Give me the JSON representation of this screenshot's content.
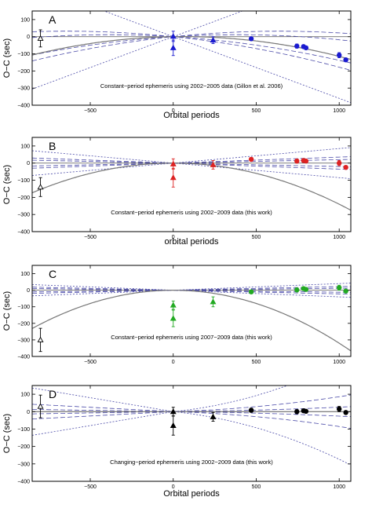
{
  "figure": {
    "colors": {
      "blue": "#1a1ad0",
      "red": "#dd2222",
      "green": "#22aa22",
      "black": "#000000",
      "envelope": "#4a4aa8",
      "fit": "#777777"
    }
  },
  "chart_data": [
    {
      "type": "scatter",
      "panel_label": "A",
      "caption": "Constant−period ephemeris using 2002−2005 data (Gillon et al. 2006)",
      "xlabel": "Orbital periods",
      "ylabel": "O−C (sec)",
      "xlim": [
        -850,
        1070
      ],
      "ylim": [
        -400,
        150
      ],
      "xticks": [
        -500,
        0,
        500,
        1000
      ],
      "xtick_labels": [
        "−500",
        "0",
        "500",
        "1000"
      ],
      "yticks": [
        100,
        0,
        -100,
        -200,
        -300,
        -400
      ],
      "ytick_labels": [
        "100",
        "0",
        "−100",
        "−200",
        "−300",
        "−400"
      ],
      "color_key": "blue",
      "fit_quadratic": -0.00013,
      "envelope_inner": [
        0.06,
        0.1
      ],
      "envelope_outer": 0.36,
      "points": [
        {
          "x": -800,
          "y": -10,
          "err": 50,
          "marker": "triangle-open",
          "color": "black"
        },
        {
          "x": 0,
          "y": 2,
          "err": 30,
          "marker": "triangle",
          "color": "blue"
        },
        {
          "x": 0,
          "y": -65,
          "err": 45,
          "marker": "triangle",
          "color": "blue"
        },
        {
          "x": 240,
          "y": -20,
          "err": 20,
          "marker": "triangle",
          "color": "blue"
        },
        {
          "x": 470,
          "y": -12,
          "err": 10,
          "marker": "circle",
          "color": "blue"
        },
        {
          "x": 745,
          "y": -55,
          "err": 12,
          "marker": "circle",
          "color": "blue"
        },
        {
          "x": 785,
          "y": -58,
          "err": 10,
          "marker": "circle",
          "color": "blue"
        },
        {
          "x": 800,
          "y": -65,
          "err": 8,
          "marker": "circle",
          "color": "blue"
        },
        {
          "x": 1000,
          "y": -108,
          "err": 15,
          "marker": "circle",
          "color": "blue"
        },
        {
          "x": 1040,
          "y": -135,
          "err": 10,
          "marker": "circle",
          "color": "blue"
        }
      ]
    },
    {
      "type": "scatter",
      "panel_label": "B",
      "caption": "Constant−period ephemeris using 2002−2009 data (this work)",
      "xlabel": "orbital periods",
      "ylabel": "O−C (sec)",
      "xlim": [
        -850,
        1070
      ],
      "ylim": [
        -400,
        150
      ],
      "xticks": [
        -500,
        0,
        500,
        1000
      ],
      "xtick_labels": [
        "−500",
        "0",
        "500",
        "1000"
      ],
      "yticks": [
        100,
        0,
        -100,
        -200,
        -300,
        -400
      ],
      "ytick_labels": [
        "100",
        "0",
        "−100",
        "−200",
        "−300",
        "−400"
      ],
      "color_key": "red",
      "fit_quadratic": -0.00024,
      "envelope_inner": [
        0.02,
        0.035
      ],
      "envelope_outer": 0.085,
      "points": [
        {
          "x": -800,
          "y": -140,
          "err": 55,
          "marker": "triangle-open",
          "color": "black"
        },
        {
          "x": 0,
          "y": -5,
          "err": 30,
          "marker": "triangle",
          "color": "red"
        },
        {
          "x": 0,
          "y": -85,
          "err": 55,
          "marker": "triangle",
          "color": "red"
        },
        {
          "x": 240,
          "y": -10,
          "err": 25,
          "marker": "triangle",
          "color": "red"
        },
        {
          "x": 470,
          "y": 22,
          "err": 10,
          "marker": "circle",
          "color": "red"
        },
        {
          "x": 745,
          "y": 12,
          "err": 12,
          "marker": "circle",
          "color": "red"
        },
        {
          "x": 785,
          "y": 15,
          "err": 10,
          "marker": "circle",
          "color": "red"
        },
        {
          "x": 800,
          "y": 12,
          "err": 8,
          "marker": "circle",
          "color": "red"
        },
        {
          "x": 1000,
          "y": 0,
          "err": 15,
          "marker": "circle",
          "color": "red"
        },
        {
          "x": 1040,
          "y": -25,
          "err": 10,
          "marker": "circle",
          "color": "red"
        }
      ]
    },
    {
      "type": "scatter",
      "panel_label": "C",
      "caption": "Constant−period ephemeris using 2007−2009 data (this work)",
      "xlabel": "",
      "ylabel": "O−C (sec)",
      "xlim": [
        -850,
        1070
      ],
      "ylim": [
        -400,
        150
      ],
      "xticks": [
        -500,
        0,
        500,
        1000
      ],
      "xtick_labels": [
        "−500",
        "0",
        "500",
        "1000"
      ],
      "yticks": [
        100,
        0,
        -100,
        -200,
        -300,
        -400
      ],
      "ytick_labels": [
        "100",
        "0",
        "−100",
        "−200",
        "−300",
        "−400"
      ],
      "color_key": "green",
      "fit_quadratic": -0.00032,
      "envelope_inner": [
        0.012,
        0.022
      ],
      "envelope_outer": 0.04,
      "points": [
        {
          "x": -800,
          "y": -300,
          "err": 70,
          "marker": "triangle-open",
          "color": "black"
        },
        {
          "x": 0,
          "y": -90,
          "err": 25,
          "marker": "triangle",
          "color": "green"
        },
        {
          "x": 0,
          "y": -170,
          "err": 50,
          "marker": "triangle",
          "color": "green"
        },
        {
          "x": 240,
          "y": -70,
          "err": 30,
          "marker": "triangle",
          "color": "green"
        },
        {
          "x": 470,
          "y": -10,
          "err": 10,
          "marker": "circle",
          "color": "green"
        },
        {
          "x": 745,
          "y": 2,
          "err": 12,
          "marker": "circle",
          "color": "green"
        },
        {
          "x": 785,
          "y": 10,
          "err": 10,
          "marker": "circle",
          "color": "green"
        },
        {
          "x": 800,
          "y": 5,
          "err": 8,
          "marker": "circle",
          "color": "green"
        },
        {
          "x": 1000,
          "y": 15,
          "err": 15,
          "marker": "circle",
          "color": "green"
        },
        {
          "x": 1040,
          "y": -5,
          "err": 10,
          "marker": "circle",
          "color": "green"
        }
      ]
    },
    {
      "type": "scatter",
      "panel_label": "D",
      "caption": "Changing−period ephemeris using 2002−2009 data (this work)",
      "xlabel": "Orbital periods",
      "ylabel": "O−C (sec)",
      "xlim": [
        -850,
        1070
      ],
      "ylim": [
        -400,
        150
      ],
      "xticks": [
        -500,
        0,
        500,
        1000
      ],
      "xtick_labels": [
        "−500",
        "0",
        "500",
        "1000"
      ],
      "yticks": [
        100,
        0,
        -100,
        -200,
        -300,
        -400
      ],
      "ytick_labels": [
        "100",
        "0",
        "−100",
        "−200",
        "−300",
        "−400"
      ],
      "color_key": "black",
      "fit_quadratic": 0,
      "envelope_inner": [
        0.015,
        0.05
      ],
      "envelope_outer": 0.16,
      "envelope_style": "cubic",
      "points": [
        {
          "x": -800,
          "y": 30,
          "err": 65,
          "marker": "triangle-open",
          "color": "black"
        },
        {
          "x": 0,
          "y": 0,
          "err": 25,
          "marker": "triangle",
          "color": "black"
        },
        {
          "x": 0,
          "y": -80,
          "err": 55,
          "marker": "triangle",
          "color": "black"
        },
        {
          "x": 240,
          "y": -30,
          "err": 25,
          "marker": "triangle",
          "color": "black"
        },
        {
          "x": 470,
          "y": 8,
          "err": 12,
          "marker": "circle",
          "color": "black"
        },
        {
          "x": 745,
          "y": 0,
          "err": 12,
          "marker": "circle",
          "color": "black"
        },
        {
          "x": 785,
          "y": 5,
          "err": 10,
          "marker": "circle",
          "color": "black"
        },
        {
          "x": 800,
          "y": 2,
          "err": 8,
          "marker": "circle",
          "color": "black"
        },
        {
          "x": 1000,
          "y": 15,
          "err": 15,
          "marker": "circle",
          "color": "black"
        },
        {
          "x": 1040,
          "y": -5,
          "err": 10,
          "marker": "circle",
          "color": "black"
        }
      ]
    }
  ]
}
